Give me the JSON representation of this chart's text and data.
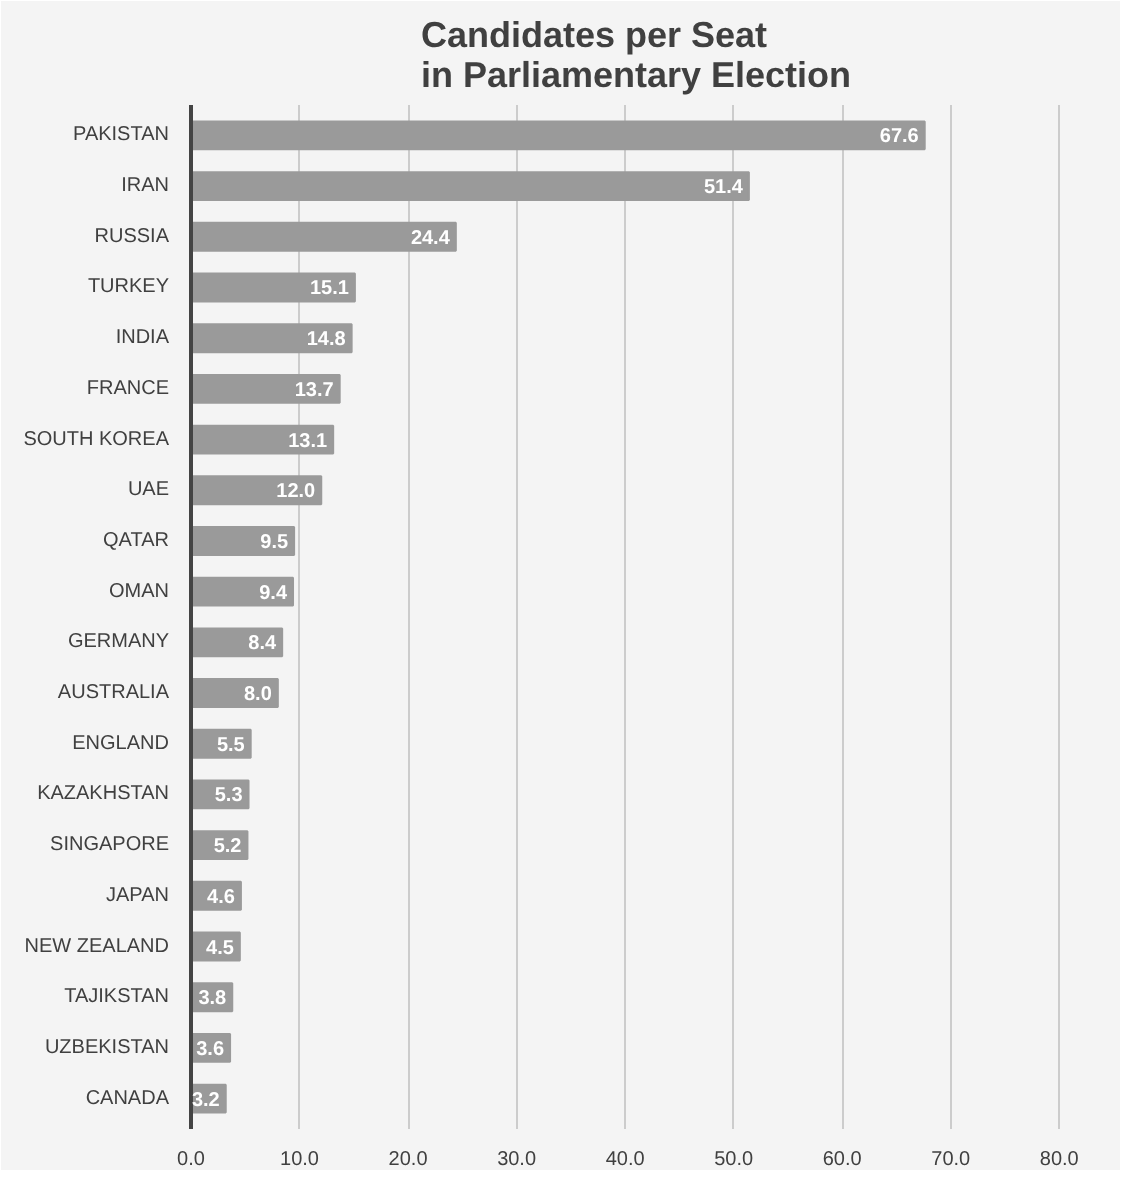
{
  "chart_data": {
    "type": "bar",
    "orientation": "horizontal",
    "title": "Candidates per Seat\nin Parliamentary Election",
    "categories": [
      "PAKISTAN",
      "IRAN",
      "RUSSIA",
      "TURKEY",
      "INDIA",
      "FRANCE",
      "SOUTH KOREA",
      "UAE",
      "QATAR",
      "OMAN",
      "GERMANY",
      "AUSTRALIA",
      "ENGLAND",
      "KAZAKHSTAN",
      "SINGAPORE",
      "JAPAN",
      "NEW ZEALAND",
      "TAJIKSTAN",
      "UZBEKISTAN",
      "CANADA"
    ],
    "values": [
      67.6,
      51.4,
      24.4,
      15.1,
      14.8,
      13.7,
      13.1,
      12.0,
      9.5,
      9.4,
      8.4,
      8.0,
      5.5,
      5.3,
      5.2,
      4.6,
      4.5,
      3.8,
      3.6,
      3.2
    ],
    "value_labels": [
      "67.6",
      "51.4",
      "24.4",
      "15.1",
      "14.8",
      "13.7",
      "13.1",
      "12.0",
      "9.5",
      "9.4",
      "8.4",
      "8.0",
      "5.5",
      "5.3",
      "5.2",
      "4.6",
      "4.5",
      "3.8",
      "3.6",
      "3.2"
    ],
    "color": "#9a9a9a",
    "xlim": [
      0,
      82
    ],
    "xticks": [
      {
        "value": 0,
        "label": "0.0"
      },
      {
        "value": 10,
        "label": "10.0"
      },
      {
        "value": 20,
        "label": "20.0"
      },
      {
        "value": 30,
        "label": "30.0"
      },
      {
        "value": 40,
        "label": "40.0"
      },
      {
        "value": 50,
        "label": "50.0"
      },
      {
        "value": 60,
        "label": "60.0"
      },
      {
        "value": 70,
        "label": "70.0"
      },
      {
        "value": 80,
        "label": "80.0"
      }
    ],
    "grid": "x"
  }
}
